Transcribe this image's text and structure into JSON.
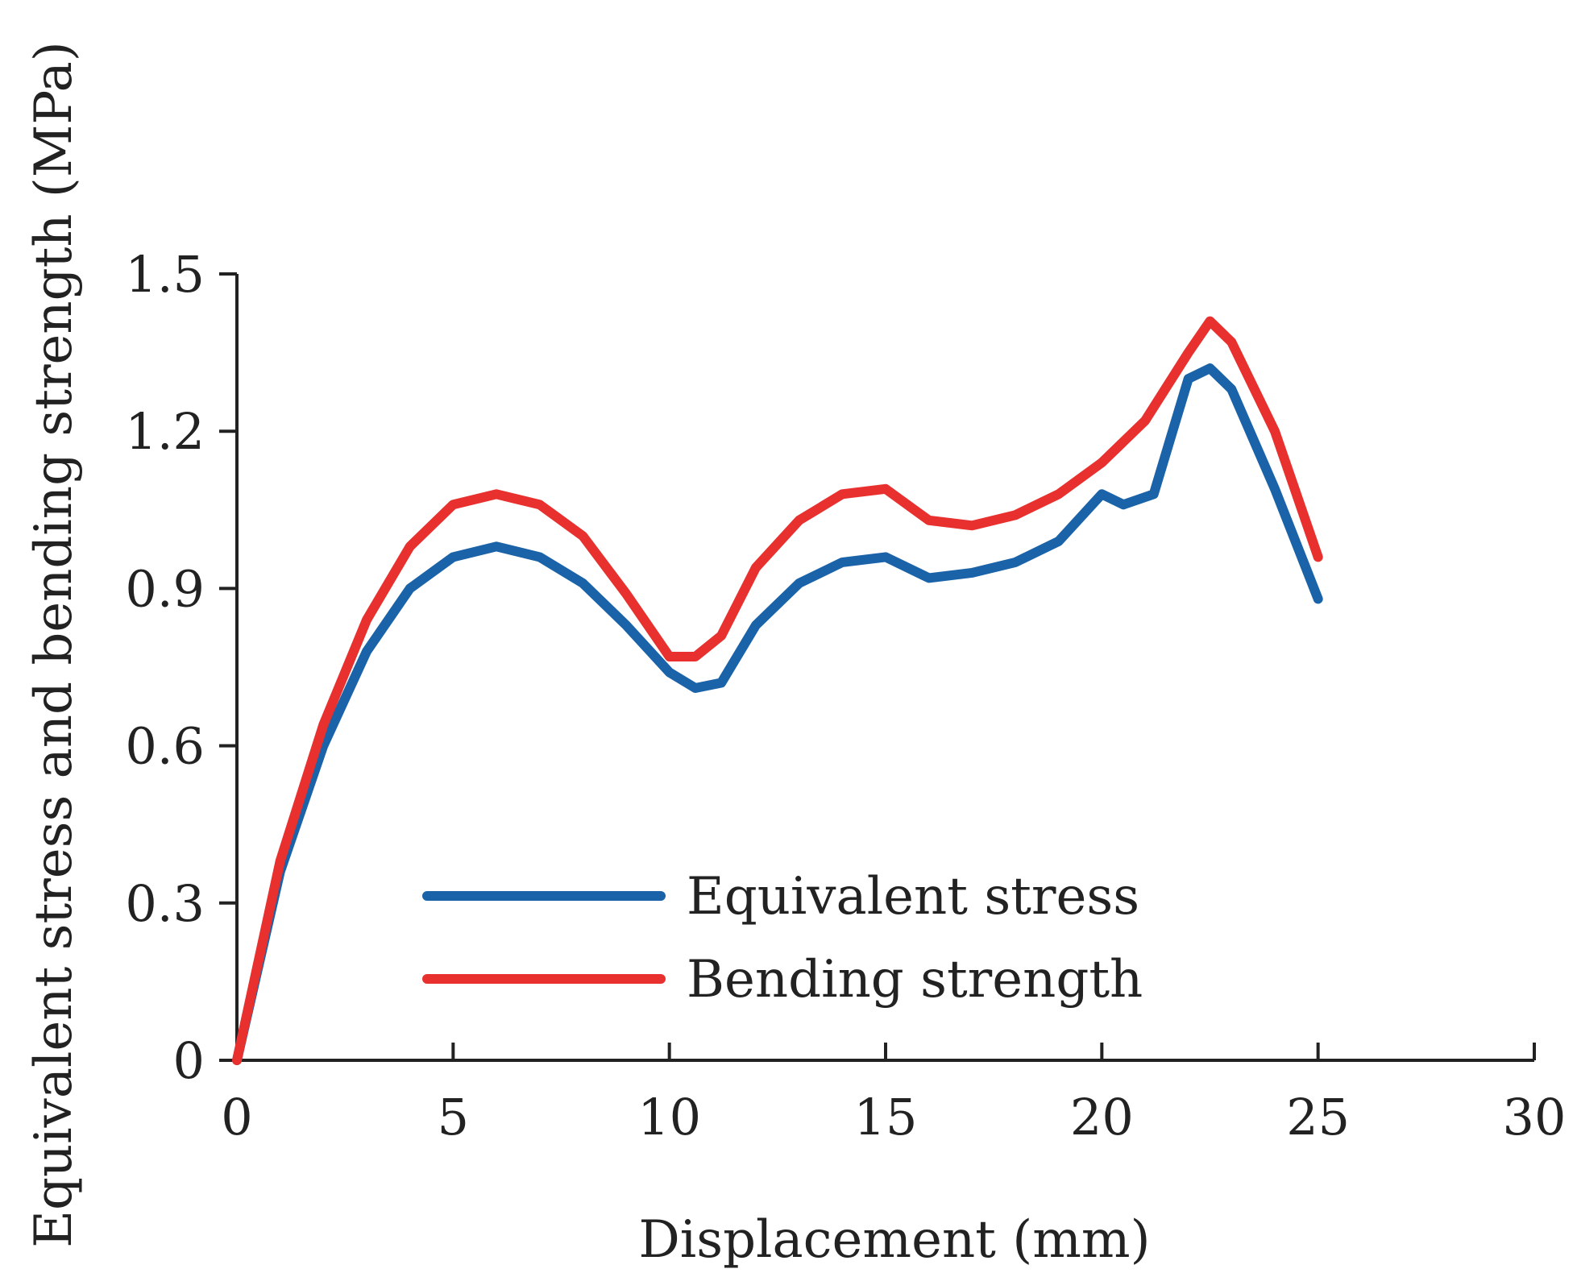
{
  "chart_data": {
    "type": "line",
    "title": "",
    "xlabel": "Displacement (mm)",
    "ylabel": "Equivalent stress and bending strength (MPa)",
    "xlim": [
      0,
      30
    ],
    "ylim": [
      0,
      1.5
    ],
    "xticks": [
      "0",
      "5",
      "10",
      "15",
      "20",
      "25",
      "30"
    ],
    "xtick_values": [
      0,
      5,
      10,
      15,
      20,
      25,
      30
    ],
    "yticks": [
      "0",
      "0.3",
      "0.6",
      "0.9",
      "1.2",
      "1.5"
    ],
    "ytick_values": [
      0,
      0.3,
      0.6,
      0.9,
      1.2,
      1.5
    ],
    "grid": false,
    "legend_position": "bottom-center",
    "series": [
      {
        "name": "Equivalent stress",
        "color": "#1a63a8",
        "x": [
          0,
          1,
          2,
          3,
          4,
          5,
          6,
          7,
          8,
          9,
          10,
          10.6,
          11.2,
          12,
          13,
          14,
          15,
          16,
          17,
          18,
          19,
          20,
          20.5,
          21.2,
          22,
          22.5,
          23,
          24,
          25
        ],
        "y": [
          0,
          0.36,
          0.6,
          0.78,
          0.9,
          0.96,
          0.98,
          0.96,
          0.91,
          0.83,
          0.74,
          0.71,
          0.72,
          0.83,
          0.91,
          0.95,
          0.96,
          0.92,
          0.93,
          0.95,
          0.99,
          1.08,
          1.06,
          1.08,
          1.3,
          1.32,
          1.28,
          1.09,
          0.88
        ]
      },
      {
        "name": "Bending strength",
        "color": "#e8312f",
        "x": [
          0,
          1,
          2,
          3,
          4,
          5,
          6,
          7,
          8,
          9,
          10,
          10.6,
          11.2,
          12,
          13,
          14,
          15,
          16,
          17,
          18,
          19,
          20,
          21,
          22,
          22.5,
          23,
          24,
          25
        ],
        "y": [
          0,
          0.38,
          0.64,
          0.84,
          0.98,
          1.06,
          1.08,
          1.06,
          1.0,
          0.89,
          0.77,
          0.77,
          0.81,
          0.94,
          1.03,
          1.08,
          1.09,
          1.03,
          1.02,
          1.04,
          1.08,
          1.14,
          1.22,
          1.35,
          1.41,
          1.37,
          1.2,
          0.96
        ]
      }
    ]
  }
}
